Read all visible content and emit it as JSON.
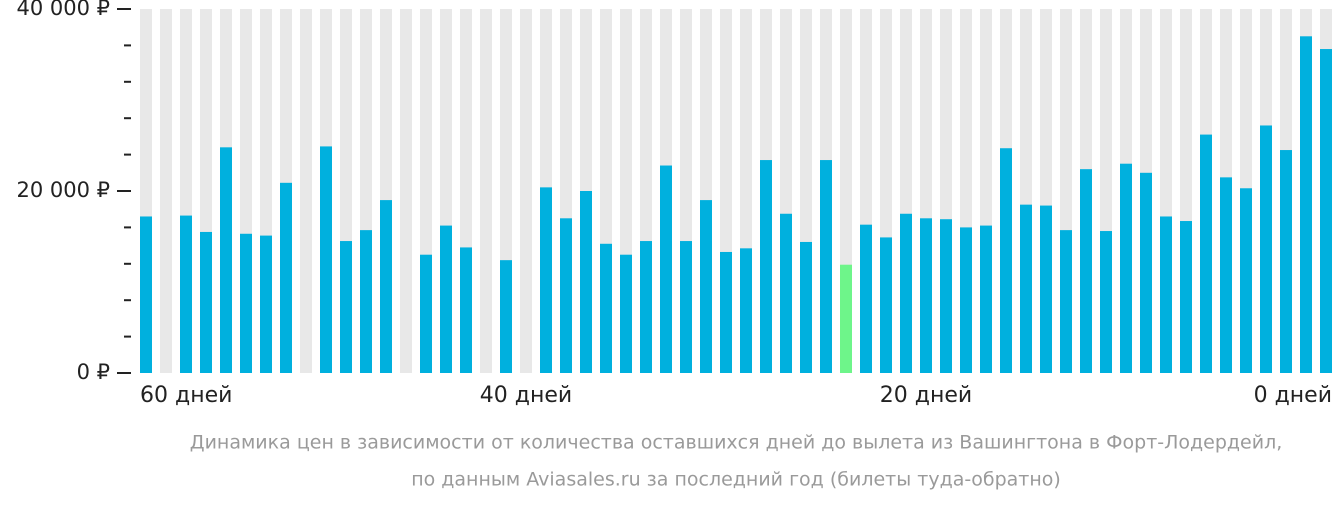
{
  "chart_data": {
    "type": "bar",
    "caption": [
      "Динамика цен в зависимости от количества оставшихся дней до вылета из Вашингтона в Форт-Лодердейл,",
      "по данным Aviasales.ru за последний год (билеты туда-обратно)"
    ],
    "categories": [
      "60 дней",
      null,
      null,
      null,
      null,
      null,
      null,
      null,
      null,
      null,
      null,
      null,
      null,
      null,
      null,
      null,
      null,
      null,
      null,
      "40 дней",
      null,
      null,
      null,
      null,
      null,
      null,
      null,
      null,
      null,
      null,
      null,
      null,
      null,
      null,
      null,
      null,
      null,
      null,
      null,
      "20 дней",
      null,
      null,
      null,
      null,
      null,
      null,
      null,
      null,
      null,
      null,
      null,
      null,
      null,
      null,
      null,
      null,
      null,
      null,
      null,
      "0 дней"
    ],
    "values": [
      17200,
      null,
      17300,
      15500,
      24800,
      15300,
      15100,
      20900,
      null,
      24900,
      14500,
      15700,
      19000,
      null,
      13000,
      16200,
      13800,
      null,
      12400,
      null,
      20400,
      17000,
      20000,
      14200,
      13000,
      14500,
      22800,
      14500,
      19000,
      13300,
      13700,
      23400,
      17500,
      14400,
      23400,
      11900,
      16300,
      14900,
      17500,
      17000,
      16900,
      16000,
      16200,
      24700,
      18500,
      18400,
      15700,
      22400,
      15600,
      23000,
      22000,
      17200,
      16700,
      26200,
      21500,
      20300,
      27200,
      24500,
      37000,
      35600
    ],
    "colors": [
      "#00b0de",
      "#00b0de",
      "#00b0de",
      "#00b0de",
      "#00b0de",
      "#00b0de",
      "#00b0de",
      "#00b0de",
      "#00b0de",
      "#00b0de",
      "#00b0de",
      "#00b0de",
      "#00b0de",
      "#00b0de",
      "#00b0de",
      "#00b0de",
      "#00b0de",
      "#00b0de",
      "#00b0de",
      "#00b0de",
      "#00b0de",
      "#00b0de",
      "#00b0de",
      "#00b0de",
      "#00b0de",
      "#00b0de",
      "#00b0de",
      "#00b0de",
      "#00b0de",
      "#00b0de",
      "#00b0de",
      "#00b0de",
      "#00b0de",
      "#00b0de",
      "#00b0de",
      "#6ef58a",
      "#00b0de",
      "#00b0de",
      "#00b0de",
      "#00b0de",
      "#00b0de",
      "#00b0de",
      "#00b0de",
      "#00b0de",
      "#00b0de",
      "#00b0de",
      "#00b0de",
      "#00b0de",
      "#00b0de",
      "#00b0de",
      "#00b0de",
      "#00b0de",
      "#00b0de",
      "#00b0de",
      "#00b0de",
      "#00b0de",
      "#00b0de",
      "#00b0de",
      "#00b0de",
      "#00b0de"
    ],
    "background_color": "#e8e8e8",
    "ylim": [
      0,
      40000
    ],
    "yticks": [
      {
        "value": 0,
        "label": "0 ₽"
      },
      {
        "value": 20000,
        "label": "20 000 ₽"
      },
      {
        "value": 40000,
        "label": "40 000 ₽"
      }
    ],
    "minor_yticks": [
      4000,
      8000,
      12000,
      16000,
      24000,
      28000,
      32000,
      36000
    ]
  }
}
